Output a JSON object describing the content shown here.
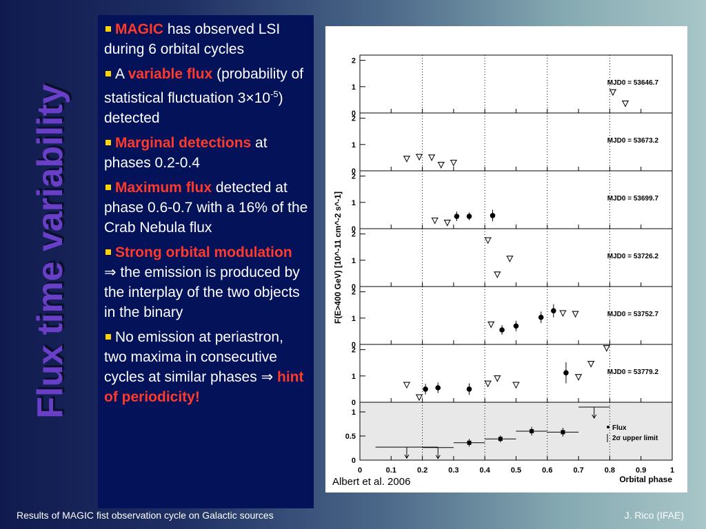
{
  "slide_title": "Flux time variability",
  "bullets": {
    "b1": {
      "red": "MAGIC",
      "text": " has observed LSI during 6 orbital cycles"
    },
    "b2": {
      "pre": "A ",
      "red": "variable flux",
      "text1": " (probability of statistical fluctuation 3×10",
      "sup": "-5",
      "text2": ") detected"
    },
    "b3": {
      "red": "Marginal detections",
      "text": " at phases 0.2-0.4"
    },
    "b4": {
      "red": "Maximum flux",
      "text": " detected at phase 0.6-0.7 with a 16% of the Crab Nebula flux"
    },
    "b5": {
      "red": "Strong orbital modulation",
      "arrow": " ⇒",
      "text": " the emission is produced by the interplay of the two objects in the binary"
    },
    "b6": {
      "text": "No emission at periastron, two maxima in consecutive cycles at similar phases",
      "arrow": " ⇒ ",
      "red": "hint of periodicity!"
    }
  },
  "caption": "Albert et al. 2006",
  "footer": {
    "left": "Results of MAGIC fist observation cycle on Galactic sources",
    "right": "J. Rico (IFAE)"
  },
  "chart_data": {
    "type": "scatter",
    "xlabel": "Orbital phase",
    "ylabel": "F(E>400 GeV) [10^-11 cm^-2 s^-1]",
    "xlim": [
      0,
      1
    ],
    "xticks": [
      "0",
      "0.1",
      "0.2",
      "0.3",
      "0.4",
      "0.5",
      "0.6",
      "0.7",
      "0.8",
      "0.9",
      "1"
    ],
    "vlines": [
      0.2,
      0.4,
      0.6,
      0.8
    ],
    "panels": [
      {
        "label": "MJD0 = 53646.7",
        "ylim": [
          0,
          2.2
        ],
        "yticks": [
          "0",
          "1",
          "2"
        ],
        "points": [],
        "upper_limits": [
          {
            "x": 0.81,
            "y": 0.78
          },
          {
            "x": 0.85,
            "y": 0.35
          }
        ]
      },
      {
        "label": "MJD0 = 53673.2",
        "ylim": [
          0,
          2.2
        ],
        "yticks": [
          "0",
          "1",
          "2"
        ],
        "points": [],
        "upper_limits": [
          {
            "x": 0.15,
            "y": 0.45
          },
          {
            "x": 0.19,
            "y": 0.52
          },
          {
            "x": 0.23,
            "y": 0.5
          },
          {
            "x": 0.26,
            "y": 0.22
          },
          {
            "x": 0.3,
            "y": 0.3
          }
        ]
      },
      {
        "label": "MJD0 = 53699.7",
        "ylim": [
          0,
          2.2
        ],
        "yticks": [
          "0",
          "1",
          "2"
        ],
        "points": [
          {
            "x": 0.31,
            "y": 0.47,
            "err": 0.18
          },
          {
            "x": 0.35,
            "y": 0.47,
            "err": 0.15
          },
          {
            "x": 0.425,
            "y": 0.5,
            "err": 0.22
          }
        ],
        "upper_limits": [
          {
            "x": 0.24,
            "y": 0.3
          },
          {
            "x": 0.28,
            "y": 0.22
          }
        ]
      },
      {
        "label": "MJD0 = 53726.2",
        "ylim": [
          0,
          2.2
        ],
        "yticks": [
          "0",
          "1",
          "2"
        ],
        "points": [],
        "upper_limits": [
          {
            "x": 0.41,
            "y": 1.75
          },
          {
            "x": 0.48,
            "y": 1.05
          },
          {
            "x": 0.44,
            "y": 0.45
          }
        ]
      },
      {
        "label": "MJD0 = 53752.7",
        "ylim": [
          0,
          2.2
        ],
        "yticks": [
          "0",
          "1",
          "2"
        ],
        "points": [
          {
            "x": 0.455,
            "y": 0.55,
            "err": 0.18
          },
          {
            "x": 0.5,
            "y": 0.7,
            "err": 0.2
          },
          {
            "x": 0.58,
            "y": 1.03,
            "err": 0.22
          },
          {
            "x": 0.62,
            "y": 1.28,
            "err": 0.25
          }
        ],
        "upper_limits": [
          {
            "x": 0.42,
            "y": 0.75
          },
          {
            "x": 0.65,
            "y": 1.18
          },
          {
            "x": 0.69,
            "y": 1.15
          }
        ]
      },
      {
        "label": "MJD0 = 53779.2",
        "ylim": [
          0,
          2.2
        ],
        "yticks": [
          "0",
          "1",
          "2"
        ],
        "points": [
          {
            "x": 0.21,
            "y": 0.5,
            "err": 0.2
          },
          {
            "x": 0.25,
            "y": 0.55,
            "err": 0.2
          },
          {
            "x": 0.35,
            "y": 0.5,
            "err": 0.22
          },
          {
            "x": 0.66,
            "y": 1.12,
            "err": 0.4
          }
        ],
        "upper_limits": [
          {
            "x": 0.15,
            "y": 0.65
          },
          {
            "x": 0.19,
            "y": 0.18
          },
          {
            "x": 0.41,
            "y": 0.7
          },
          {
            "x": 0.44,
            "y": 0.9
          },
          {
            "x": 0.5,
            "y": 0.65
          },
          {
            "x": 0.7,
            "y": 0.95
          },
          {
            "x": 0.74,
            "y": 1.45
          },
          {
            "x": 0.79,
            "y": 2.05
          }
        ]
      },
      {
        "ylim": [
          0,
          1.2
        ],
        "yticks": [
          "0",
          "0.5",
          "1"
        ],
        "shaded": true,
        "legend": [
          "Flux",
          "2σ upper limit"
        ],
        "points": [
          {
            "x": 0.35,
            "xerr": 0.05,
            "y": 0.36,
            "err": 0.08
          },
          {
            "x": 0.45,
            "xerr": 0.05,
            "y": 0.44,
            "err": 0.07
          },
          {
            "x": 0.55,
            "xerr": 0.05,
            "y": 0.6,
            "err": 0.09
          },
          {
            "x": 0.65,
            "xerr": 0.05,
            "y": 0.58,
            "err": 0.09
          }
        ],
        "upper_limits": [
          {
            "x": 0.15,
            "xerr": 0.1,
            "y": 0.27
          },
          {
            "x": 0.25,
            "xerr": 0.05,
            "y": 0.26
          },
          {
            "x": 0.75,
            "xerr": 0.05,
            "y": 1.1
          }
        ]
      }
    ]
  }
}
